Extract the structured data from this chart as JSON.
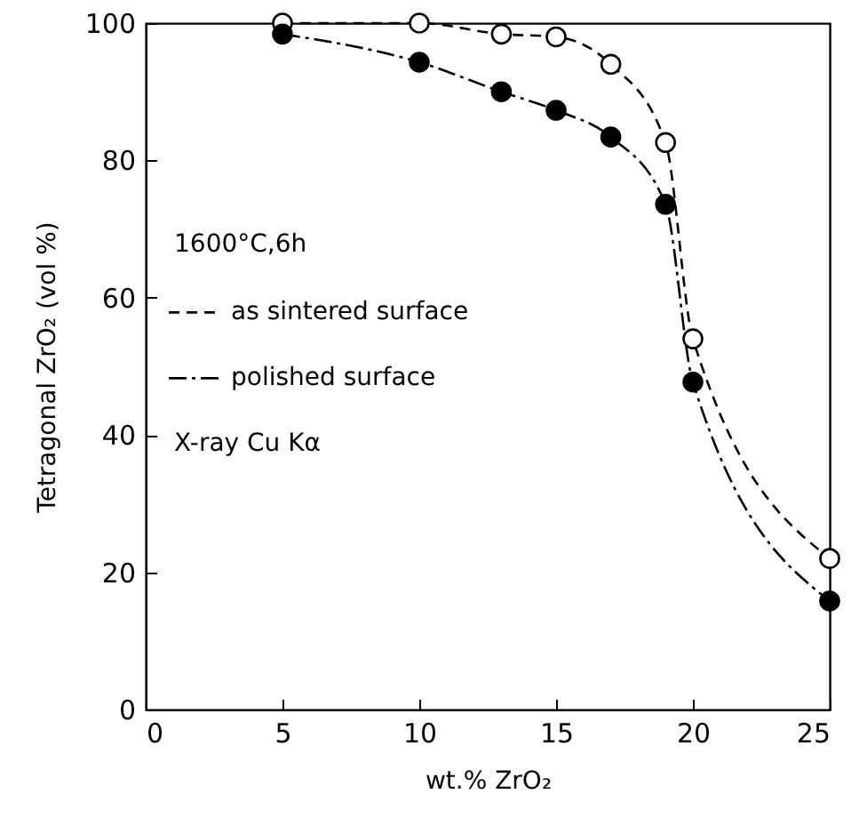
{
  "chart_data": {
    "type": "line",
    "xlabel": "wt.% ZrO₂",
    "ylabel": "Tetragonal ZrO₂ (vol %)",
    "x": [
      5,
      10,
      13,
      15,
      17,
      19,
      20,
      25
    ],
    "series": [
      {
        "name": "as sintered surface",
        "color": "#000000",
        "line_style": "dashed",
        "values": [
          100,
          100,
          98.4,
          98,
          94,
          82.6,
          54,
          22
        ]
      },
      {
        "name": "polished surface",
        "color": "#000000",
        "line_style": "dashed",
        "values": [
          98.4,
          94.3,
          90,
          87.3,
          83.4,
          73.6,
          47.7,
          15.8
        ]
      }
    ],
    "annotations": [
      "1600°C,6h",
      "X-ray Cu Kα"
    ],
    "xlim": [
      0,
      25
    ],
    "xticks": [
      0,
      5,
      10,
      15,
      20,
      25
    ],
    "ylim": [
      0,
      100
    ],
    "yticks": [
      0,
      20,
      40,
      60,
      80,
      100
    ],
    "marker": "circle",
    "legend": "left",
    "grid": false
  }
}
